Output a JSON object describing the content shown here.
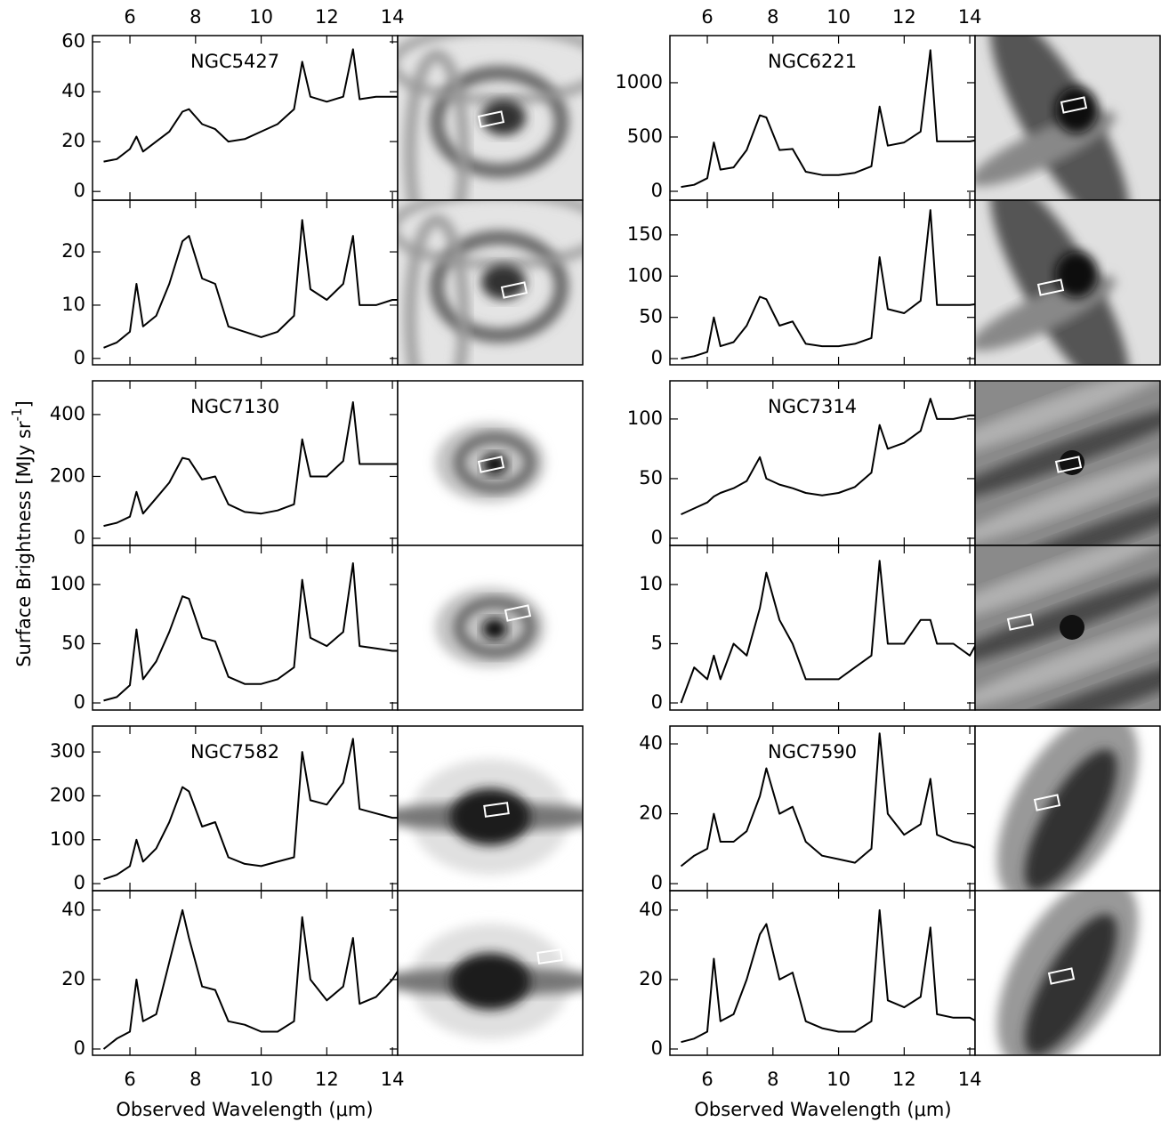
{
  "figure": {
    "ylabel": "Surface Brightness [MJy sr",
    "ylabel_sup": "-1",
    "ylabel_end": "]",
    "xlabel": "Observed Wavelength (μm)"
  },
  "chart_data": [
    {
      "type": "line",
      "title": "NGC5427",
      "color": "#000000",
      "xlim": [
        4.86,
        14.16
      ],
      "xticks": [
        6,
        8,
        10,
        12,
        14
      ],
      "ylim": [
        -3.5,
        62.5
      ],
      "yticks": [
        0,
        20,
        40,
        60
      ],
      "x": [
        5.2,
        5.6,
        6.0,
        6.2,
        6.4,
        6.8,
        7.2,
        7.6,
        7.8,
        8.2,
        8.6,
        9.0,
        9.5,
        10.0,
        10.5,
        11.0,
        11.25,
        11.5,
        12.0,
        12.5,
        12.8,
        13.0,
        13.5,
        14.0,
        14.2
      ],
      "values": [
        12,
        13,
        17,
        22,
        16,
        20,
        24,
        32,
        33,
        27,
        25,
        20,
        21,
        24,
        27,
        33,
        52,
        38,
        36,
        38,
        57,
        37,
        38,
        38,
        38
      ]
    },
    {
      "type": "line",
      "color": "#000000",
      "xlim": [
        4.86,
        14.16
      ],
      "xticks": [
        6,
        8,
        10,
        12,
        14
      ],
      "ylim": [
        -1.2,
        29.7
      ],
      "yticks": [
        0,
        10,
        20
      ],
      "x": [
        5.2,
        5.6,
        6.0,
        6.2,
        6.4,
        6.8,
        7.2,
        7.6,
        7.8,
        8.2,
        8.6,
        9.0,
        9.5,
        10.0,
        10.5,
        11.0,
        11.25,
        11.5,
        12.0,
        12.5,
        12.8,
        13.0,
        13.5,
        14.0,
        14.2
      ],
      "values": [
        2,
        3,
        5,
        14,
        6,
        8,
        14,
        22,
        23,
        15,
        14,
        6,
        5,
        4,
        5,
        8,
        26,
        13,
        11,
        14,
        23,
        10,
        10,
        11,
        11
      ]
    },
    {
      "type": "line",
      "title": "NGC7130",
      "color": "#000000",
      "xlim": [
        4.86,
        14.16
      ],
      "xticks": [
        6,
        8,
        10,
        12,
        14
      ],
      "ylim": [
        -23,
        509
      ],
      "yticks": [
        0,
        200,
        400
      ],
      "x": [
        5.2,
        5.6,
        6.0,
        6.2,
        6.4,
        6.8,
        7.2,
        7.6,
        7.8,
        8.2,
        8.6,
        9.0,
        9.5,
        10.0,
        10.5,
        11.0,
        11.25,
        11.5,
        12.0,
        12.5,
        12.8,
        13.0,
        13.5,
        14.0,
        14.2
      ],
      "values": [
        40,
        50,
        70,
        150,
        80,
        130,
        180,
        260,
        255,
        190,
        200,
        110,
        85,
        80,
        90,
        110,
        320,
        200,
        200,
        250,
        440,
        240,
        240,
        240,
        240
      ]
    },
    {
      "type": "line",
      "color": "#000000",
      "xlim": [
        4.86,
        14.16
      ],
      "xticks": [
        6,
        8,
        10,
        12,
        14
      ],
      "ylim": [
        -6,
        133
      ],
      "yticks": [
        0,
        50,
        100
      ],
      "x": [
        5.2,
        5.6,
        6.0,
        6.2,
        6.4,
        6.8,
        7.2,
        7.6,
        7.8,
        8.2,
        8.6,
        9.0,
        9.5,
        10.0,
        10.5,
        11.0,
        11.25,
        11.5,
        12.0,
        12.5,
        12.8,
        13.0,
        13.5,
        14.0,
        14.2
      ],
      "values": [
        2,
        5,
        15,
        62,
        20,
        35,
        60,
        90,
        88,
        55,
        52,
        22,
        16,
        16,
        20,
        30,
        104,
        55,
        48,
        60,
        118,
        48,
        46,
        44,
        44
      ]
    },
    {
      "type": "line",
      "title": "NGC7582",
      "color": "#000000",
      "xlim": [
        4.86,
        14.16
      ],
      "xticks": [
        6,
        8,
        10,
        12,
        14
      ],
      "ylim": [
        -16,
        359
      ],
      "yticks": [
        0,
        100,
        200,
        300
      ],
      "x": [
        5.2,
        5.6,
        6.0,
        6.2,
        6.4,
        6.8,
        7.2,
        7.6,
        7.8,
        8.2,
        8.6,
        9.0,
        9.5,
        10.0,
        10.5,
        11.0,
        11.25,
        11.5,
        12.0,
        12.5,
        12.8,
        13.0,
        13.5,
        14.0,
        14.2
      ],
      "values": [
        10,
        20,
        40,
        100,
        50,
        80,
        140,
        220,
        210,
        130,
        140,
        60,
        45,
        40,
        50,
        60,
        300,
        190,
        180,
        230,
        330,
        170,
        160,
        150,
        150
      ]
    },
    {
      "type": "line",
      "color": "#000000",
      "xlim": [
        4.86,
        14.16
      ],
      "xticks": [
        6,
        8,
        10,
        12,
        14
      ],
      "ylim": [
        -1.8,
        45.6
      ],
      "yticks": [
        0,
        20,
        40
      ],
      "x": [
        5.2,
        5.6,
        6.0,
        6.2,
        6.4,
        6.8,
        7.2,
        7.6,
        7.8,
        8.2,
        8.6,
        9.0,
        9.5,
        10.0,
        10.5,
        11.0,
        11.25,
        11.5,
        12.0,
        12.5,
        12.8,
        13.0,
        13.5,
        14.0,
        14.2
      ],
      "values": [
        0,
        3,
        5,
        20,
        8,
        10,
        25,
        40,
        32,
        18,
        17,
        8,
        7,
        5,
        5,
        8,
        38,
        20,
        14,
        18,
        32,
        13,
        15,
        20,
        23
      ]
    },
    {
      "type": "line",
      "title": "NGC6221",
      "color": "#000000",
      "xlim": [
        4.86,
        14.16
      ],
      "xticks": [
        6,
        8,
        10,
        12,
        14
      ],
      "ylim": [
        -82,
        1434
      ],
      "yticks": [
        0,
        500,
        1000
      ],
      "x": [
        5.2,
        5.6,
        6.0,
        6.2,
        6.4,
        6.8,
        7.2,
        7.6,
        7.8,
        8.2,
        8.6,
        9.0,
        9.5,
        10.0,
        10.5,
        11.0,
        11.25,
        11.5,
        12.0,
        12.5,
        12.8,
        13.0,
        13.5,
        14.0,
        14.2
      ],
      "values": [
        40,
        60,
        120,
        450,
        200,
        220,
        380,
        700,
        680,
        380,
        390,
        180,
        150,
        150,
        170,
        230,
        780,
        420,
        450,
        550,
        1300,
        460,
        460,
        460,
        470
      ]
    },
    {
      "type": "line",
      "color": "#000000",
      "xlim": [
        4.86,
        14.16
      ],
      "xticks": [
        6,
        8,
        10,
        12,
        14
      ],
      "ylim": [
        -7.5,
        192
      ],
      "yticks": [
        0,
        50,
        100,
        150
      ],
      "x": [
        5.2,
        5.6,
        6.0,
        6.2,
        6.4,
        6.8,
        7.2,
        7.6,
        7.8,
        8.2,
        8.6,
        9.0,
        9.5,
        10.0,
        10.5,
        11.0,
        11.25,
        11.5,
        12.0,
        12.5,
        12.8,
        13.0,
        13.5,
        14.0,
        14.2
      ],
      "values": [
        0,
        3,
        8,
        50,
        15,
        20,
        40,
        75,
        72,
        40,
        45,
        18,
        15,
        15,
        18,
        25,
        123,
        60,
        55,
        70,
        180,
        65,
        65,
        65,
        66
      ]
    },
    {
      "type": "line",
      "title": "NGC7314",
      "color": "#000000",
      "xlim": [
        4.86,
        14.16
      ],
      "xticks": [
        6,
        8,
        10,
        12,
        14
      ],
      "ylim": [
        -6,
        132
      ],
      "yticks": [
        0,
        50,
        100
      ],
      "x": [
        5.2,
        5.6,
        6.0,
        6.2,
        6.4,
        6.8,
        7.2,
        7.6,
        7.8,
        8.2,
        8.6,
        9.0,
        9.5,
        10.0,
        10.5,
        11.0,
        11.25,
        11.5,
        12.0,
        12.5,
        12.8,
        13.0,
        13.5,
        14.0,
        14.2
      ],
      "values": [
        20,
        25,
        30,
        35,
        38,
        42,
        48,
        68,
        50,
        45,
        42,
        38,
        36,
        38,
        43,
        55,
        95,
        75,
        80,
        90,
        117,
        100,
        100,
        103,
        103
      ]
    },
    {
      "type": "line",
      "color": "#000000",
      "xlim": [
        4.86,
        14.16
      ],
      "xticks": [
        6,
        8,
        10,
        12,
        14
      ],
      "ylim": [
        -0.6,
        13.3
      ],
      "yticks": [
        0,
        5,
        10
      ],
      "x": [
        5.2,
        5.6,
        6.0,
        6.2,
        6.4,
        6.8,
        7.2,
        7.6,
        7.8,
        8.2,
        8.6,
        9.0,
        9.5,
        10.0,
        10.5,
        11.0,
        11.25,
        11.5,
        12.0,
        12.5,
        12.8,
        13.0,
        13.5,
        14.0,
        14.2
      ],
      "values": [
        0,
        3,
        2,
        4,
        2,
        5,
        4,
        8,
        11,
        7,
        5,
        2,
        2,
        2,
        3,
        4,
        12,
        5,
        5,
        7,
        7,
        5,
        5,
        4,
        5
      ]
    },
    {
      "type": "line",
      "title": "NGC7590",
      "color": "#000000",
      "xlim": [
        4.86,
        14.16
      ],
      "xticks": [
        6,
        8,
        10,
        12,
        14
      ],
      "ylim": [
        -2,
        45.1
      ],
      "yticks": [
        0,
        20,
        40
      ],
      "x": [
        5.2,
        5.6,
        6.0,
        6.2,
        6.4,
        6.8,
        7.2,
        7.6,
        7.8,
        8.2,
        8.6,
        9.0,
        9.5,
        10.0,
        10.5,
        11.0,
        11.25,
        11.5,
        12.0,
        12.5,
        12.8,
        13.0,
        13.5,
        14.0,
        14.2
      ],
      "values": [
        5,
        8,
        10,
        20,
        12,
        12,
        15,
        25,
        33,
        20,
        22,
        12,
        8,
        7,
        6,
        10,
        43,
        20,
        14,
        17,
        30,
        14,
        12,
        11,
        10
      ]
    },
    {
      "type": "line",
      "color": "#000000",
      "xlim": [
        4.86,
        14.16
      ],
      "xticks": [
        6,
        8,
        10,
        12,
        14
      ],
      "ylim": [
        -1.8,
        45.6
      ],
      "yticks": [
        0,
        20,
        40
      ],
      "x": [
        5.2,
        5.6,
        6.0,
        6.2,
        6.4,
        6.8,
        7.2,
        7.6,
        7.8,
        8.2,
        8.6,
        9.0,
        9.5,
        10.0,
        10.5,
        11.0,
        11.25,
        11.5,
        12.0,
        12.5,
        12.8,
        13.0,
        13.5,
        14.0,
        14.2
      ],
      "values": [
        2,
        3,
        5,
        26,
        8,
        10,
        20,
        33,
        36,
        20,
        22,
        8,
        6,
        5,
        5,
        8,
        40,
        14,
        12,
        15,
        35,
        10,
        9,
        9,
        8
      ]
    }
  ]
}
